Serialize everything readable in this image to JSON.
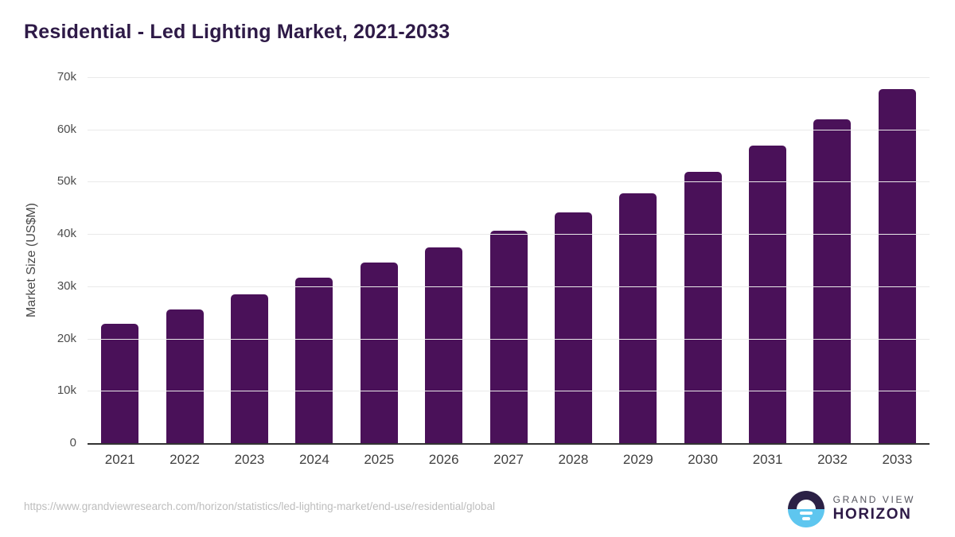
{
  "title": "Residential - Led Lighting Market, 2021-2033",
  "footer": {
    "source_url": "https://www.grandviewresearch.com/horizon/statistics/led-lighting-market/end-use/residential/global"
  },
  "logo": {
    "line1": "GRAND VIEW",
    "line2": "HORIZON"
  },
  "colors": {
    "bar": "#4a1159",
    "title_text": "#2e1a47",
    "grid_line": "#e9e9e9",
    "axis_line": "#333333",
    "ytick_text": "#4d4d4d",
    "xlabel_text": "#3f3f3f",
    "url_text": "#bdbdbd",
    "logo_dark": "#2b2045",
    "logo_blue": "#5ec6ef"
  },
  "chart_data": {
    "type": "bar",
    "title": "Residential - Led Lighting Market, 2021-2033",
    "categories": [
      "2021",
      "2022",
      "2023",
      "2024",
      "2025",
      "2026",
      "2027",
      "2028",
      "2029",
      "2030",
      "2031",
      "2032",
      "2033"
    ],
    "values": [
      22900,
      25600,
      28400,
      31700,
      34600,
      37400,
      40600,
      44100,
      47800,
      51900,
      56900,
      61900,
      67700
    ],
    "xlabel": "",
    "ylabel": "Market Size (US$M)",
    "ylim": [
      0,
      70000
    ],
    "yticks": [
      0,
      10000,
      20000,
      30000,
      40000,
      50000,
      60000,
      70000
    ],
    "ytick_labels": [
      "0",
      "10k",
      "20k",
      "30k",
      "40k",
      "50k",
      "60k",
      "70k"
    ],
    "grid": "horizontal-only",
    "legend": "none",
    "bar_color": "#4a1159"
  }
}
